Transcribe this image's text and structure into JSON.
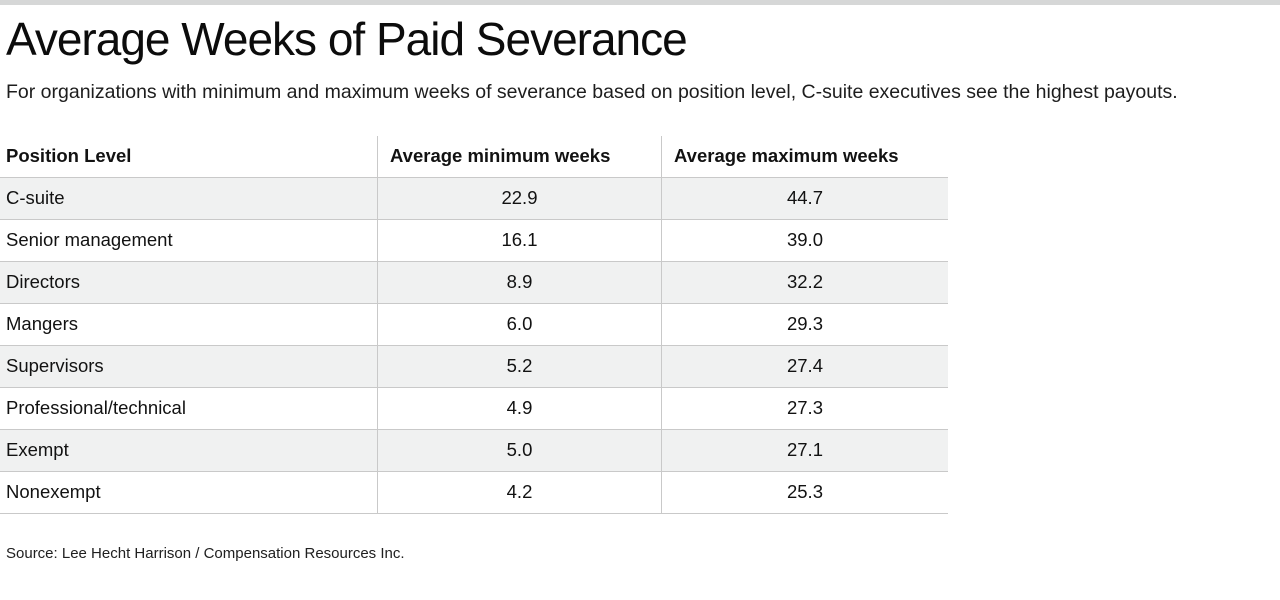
{
  "page": {
    "title": "Average Weeks of Paid Severance",
    "subtitle": "For organizations with minimum and maximum weeks of severance based on position level, C-suite executives see the highest payouts.",
    "source": "Source: Lee Hecht Harrison / Compensation Resources Inc."
  },
  "table": {
    "columns": [
      "Position Level",
      "Average minimum weeks",
      "Average maximum weeks"
    ],
    "rows": [
      {
        "label": "C-suite",
        "min": "22.9",
        "max": "44.7"
      },
      {
        "label": "Senior management",
        "min": "16.1",
        "max": "39.0"
      },
      {
        "label": "Directors",
        "min": "8.9",
        "max": "32.2"
      },
      {
        "label": "Mangers",
        "min": "6.0",
        "max": "29.3"
      },
      {
        "label": "Supervisors",
        "min": "5.2",
        "max": "27.4"
      },
      {
        "label": "Professional/technical",
        "min": "4.9",
        "max": "27.3"
      },
      {
        "label": "Exempt",
        "min": "5.0",
        "max": "27.1"
      },
      {
        "label": "Nonexempt",
        "min": "4.2",
        "max": "25.3"
      }
    ]
  },
  "colors": {
    "text": "#121212",
    "top_bar": "#d6d7d7",
    "border": "#c9c9c9",
    "row_stripe": "#f0f1f1"
  },
  "chart_data": {
    "type": "table",
    "title": "Average Weeks of Paid Severance",
    "subtitle": "For organizations with minimum and maximum weeks of severance based on position level, C-suite executives see the highest payouts.",
    "categories": [
      "C-suite",
      "Senior management",
      "Directors",
      "Mangers",
      "Supervisors",
      "Professional/technical",
      "Exempt",
      "Nonexempt"
    ],
    "series": [
      {
        "name": "Average minimum weeks",
        "values": [
          22.9,
          16.1,
          8.9,
          6.0,
          5.2,
          4.9,
          5.0,
          4.2
        ]
      },
      {
        "name": "Average maximum weeks",
        "values": [
          44.7,
          39.0,
          32.2,
          29.3,
          27.4,
          27.3,
          27.1,
          25.3
        ]
      }
    ],
    "source": "Source: Lee Hecht Harrison / Compensation Resources Inc."
  }
}
